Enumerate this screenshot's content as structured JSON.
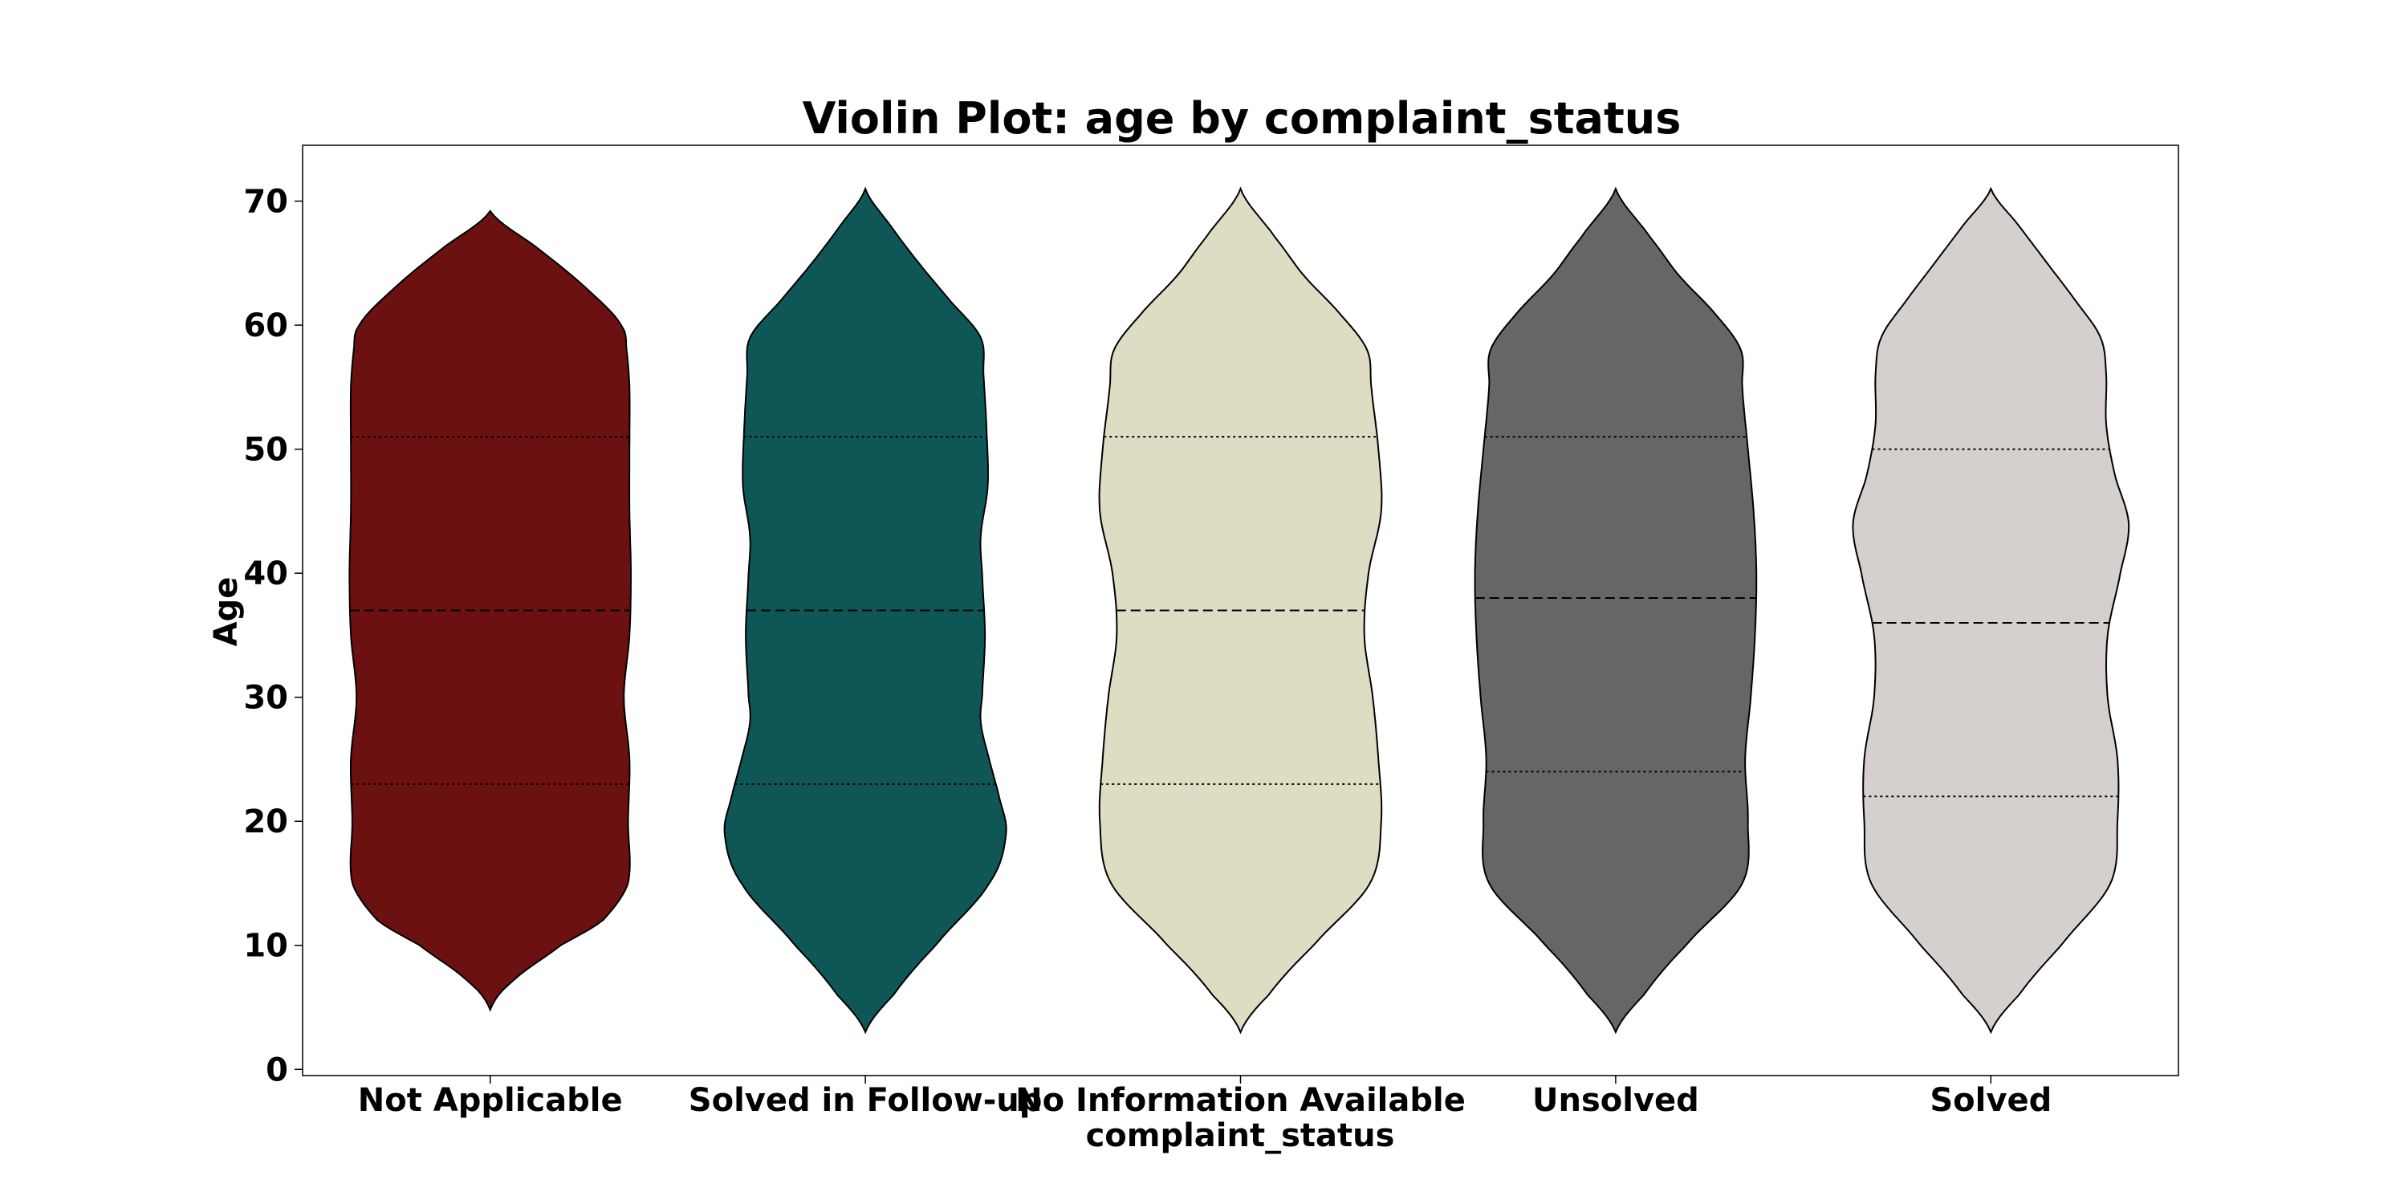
{
  "chart_data": {
    "type": "violin",
    "title": "Violin Plot: age by complaint_status",
    "xlabel": "complaint_status",
    "ylabel": "Age",
    "ylim": [
      -0.5,
      74.5
    ],
    "yticks": [
      0,
      10,
      20,
      30,
      40,
      50,
      60,
      70
    ],
    "grid": false,
    "categories": [
      "Not Applicable",
      "Solved in Follow-up",
      "No Information Available",
      "Unsolved",
      "Solved"
    ],
    "series": [
      {
        "category": "Not Applicable",
        "color": "#6b1111",
        "range": [
          4.8,
          69.2
        ],
        "quartiles": {
          "q1": 23,
          "median": 37,
          "q3": 51
        },
        "half_width_fraction": [
          [
            4.8,
            0.0
          ],
          [
            7,
            0.15
          ],
          [
            10,
            0.5
          ],
          [
            12,
            0.8
          ],
          [
            15,
            0.98
          ],
          [
            20,
            0.98
          ],
          [
            25,
            0.99
          ],
          [
            30,
            0.95
          ],
          [
            35,
            0.99
          ],
          [
            40,
            1.0
          ],
          [
            45,
            0.99
          ],
          [
            50,
            0.99
          ],
          [
            55,
            0.99
          ],
          [
            58,
            0.97
          ],
          [
            60,
            0.93
          ],
          [
            63,
            0.68
          ],
          [
            66,
            0.36
          ],
          [
            69.2,
            0.0
          ]
        ]
      },
      {
        "category": "Solved in Follow-up",
        "color": "#0f5757",
        "range": [
          3.0,
          71.0
        ],
        "quartiles": {
          "q1": 23,
          "median": 37,
          "q3": 51
        },
        "half_width_fraction": [
          [
            3.0,
            0.0
          ],
          [
            6,
            0.2
          ],
          [
            10,
            0.5
          ],
          [
            15,
            0.88
          ],
          [
            19,
            1.0
          ],
          [
            22,
            0.95
          ],
          [
            25,
            0.88
          ],
          [
            28,
            0.82
          ],
          [
            30,
            0.83
          ],
          [
            35,
            0.85
          ],
          [
            40,
            0.83
          ],
          [
            43,
            0.82
          ],
          [
            47,
            0.87
          ],
          [
            52,
            0.86
          ],
          [
            56,
            0.84
          ],
          [
            59,
            0.82
          ],
          [
            62,
            0.6
          ],
          [
            65,
            0.38
          ],
          [
            68,
            0.18
          ],
          [
            71,
            0.0
          ]
        ]
      },
      {
        "category": "No Information Available",
        "color": "#dedcc2",
        "range": [
          3.0,
          71.0
        ],
        "quartiles": {
          "q1": 23,
          "median": 37,
          "q3": 51
        },
        "half_width_fraction": [
          [
            3.0,
            0.0
          ],
          [
            6,
            0.2
          ],
          [
            10,
            0.52
          ],
          [
            15,
            0.92
          ],
          [
            20,
            1.0
          ],
          [
            25,
            0.98
          ],
          [
            30,
            0.94
          ],
          [
            35,
            0.88
          ],
          [
            40,
            0.91
          ],
          [
            45,
            1.0
          ],
          [
            50,
            0.98
          ],
          [
            55,
            0.93
          ],
          [
            58,
            0.9
          ],
          [
            61,
            0.7
          ],
          [
            64,
            0.45
          ],
          [
            67,
            0.25
          ],
          [
            71,
            0.0
          ]
        ]
      },
      {
        "category": "Unsolved",
        "color": "#666666",
        "range": [
          3.0,
          71.0
        ],
        "quartiles": {
          "q1": 24,
          "median": 38,
          "q3": 51
        },
        "half_width_fraction": [
          [
            3.0,
            0.0
          ],
          [
            6,
            0.2
          ],
          [
            10,
            0.5
          ],
          [
            15,
            0.9
          ],
          [
            20,
            0.94
          ],
          [
            25,
            0.92
          ],
          [
            30,
            0.96
          ],
          [
            35,
            0.99
          ],
          [
            40,
            1.0
          ],
          [
            45,
            0.98
          ],
          [
            50,
            0.94
          ],
          [
            55,
            0.9
          ],
          [
            58,
            0.89
          ],
          [
            61,
            0.7
          ],
          [
            64,
            0.45
          ],
          [
            67,
            0.25
          ],
          [
            71,
            0.0
          ]
        ]
      },
      {
        "category": "Solved",
        "color": "#d5cfcd",
        "range": [
          3.0,
          71.0
        ],
        "quartiles": {
          "q1": 22,
          "median": 36,
          "q3": 50
        },
        "half_width_fraction": [
          [
            3.0,
            0.0
          ],
          [
            6,
            0.2
          ],
          [
            10,
            0.5
          ],
          [
            15,
            0.85
          ],
          [
            20,
            0.9
          ],
          [
            25,
            0.9
          ],
          [
            30,
            0.83
          ],
          [
            35,
            0.83
          ],
          [
            40,
            0.92
          ],
          [
            44,
            0.98
          ],
          [
            48,
            0.88
          ],
          [
            52,
            0.82
          ],
          [
            56,
            0.82
          ],
          [
            59,
            0.78
          ],
          [
            62,
            0.6
          ],
          [
            65,
            0.4
          ],
          [
            68,
            0.2
          ],
          [
            71,
            0.0
          ]
        ]
      }
    ]
  }
}
